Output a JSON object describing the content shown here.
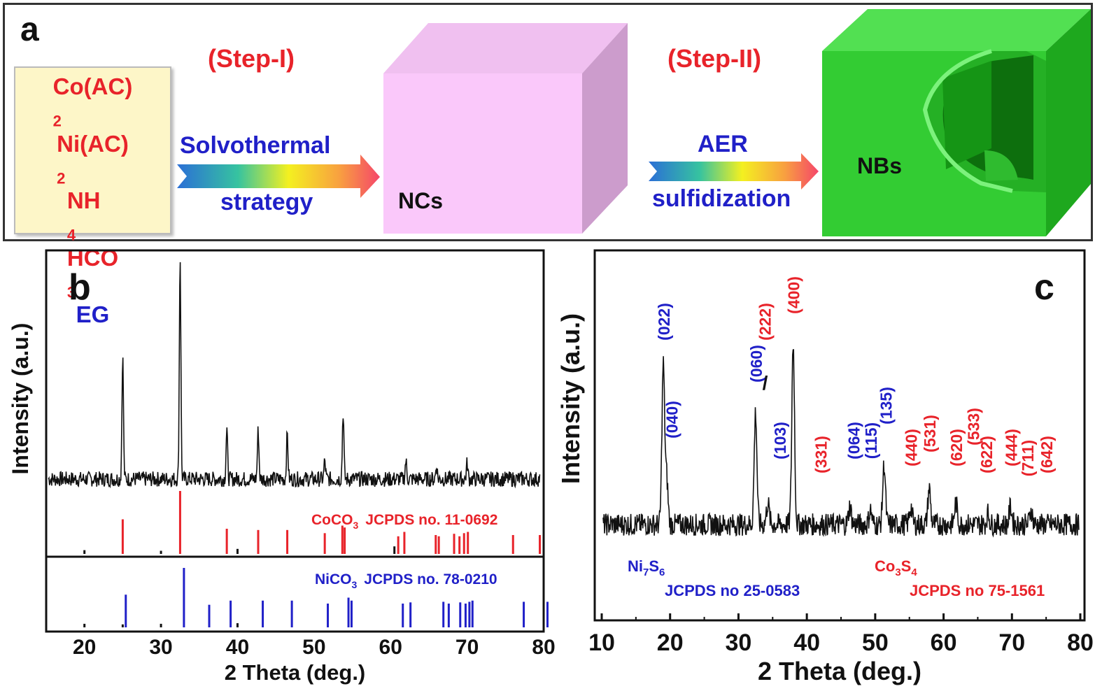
{
  "panel_a": {
    "label": "a",
    "reactants": [
      {
        "main": "Co(AC)",
        "sub": "2",
        "tail": "",
        "color": "#e8232a"
      },
      {
        "main": "Ni(AC)",
        "sub": "2",
        "tail": "",
        "color": "#e8232a"
      },
      {
        "main": "NH",
        "sub": "4",
        "tail": "HCO",
        "sub2": "3",
        "color": "#e8232a"
      },
      {
        "main": "EG",
        "sub": "",
        "tail": "",
        "color": "#2020c8"
      }
    ],
    "step1": "(Step-I)",
    "step1_arrow_top": "Solvothermal",
    "step1_arrow_bottom": "strategy",
    "ncs_label": "NCs",
    "step2": "(Step-II)",
    "step2_arrow_top": "AER",
    "step2_arrow_bottom": "sulfidization",
    "nbs_label": "NBs"
  },
  "chart_data": [
    {
      "type": "line",
      "panel_label": "b",
      "xlabel": "2 Theta (deg.)",
      "ylabel": "Intensity (a.u.)",
      "xlim": [
        15,
        80
      ],
      "xticks": [
        20,
        30,
        40,
        50,
        60,
        70,
        80
      ],
      "series_peaks": [
        [
          25.0,
          0.55
        ],
        [
          32.5,
          1.0
        ],
        [
          38.6,
          0.22
        ],
        [
          42.7,
          0.22
        ],
        [
          46.5,
          0.2
        ],
        [
          51.4,
          0.08
        ],
        [
          53.8,
          0.3
        ],
        [
          62.0,
          0.08
        ],
        [
          66.0,
          0.06
        ],
        [
          70.0,
          0.07
        ]
      ],
      "references": [
        {
          "name": "CoCO",
          "sub": "3",
          "label": "JCPDS no. 11-0692",
          "color": "#e8232a",
          "lines": [
            [
              20.0,
              0.06,
              "#111"
            ],
            [
              25.0,
              0.55
            ],
            [
              30.0,
              0.05,
              "#111"
            ],
            [
              32.5,
              1.0
            ],
            [
              38.6,
              0.4
            ],
            [
              40.0,
              0.08,
              "#111"
            ],
            [
              42.7,
              0.38
            ],
            [
              46.5,
              0.38
            ],
            [
              51.4,
              0.33
            ],
            [
              53.7,
              0.45
            ],
            [
              54.0,
              0.42
            ],
            [
              60.5,
              0.12,
              "#111"
            ],
            [
              61.0,
              0.28
            ],
            [
              61.8,
              0.35
            ],
            [
              65.9,
              0.3
            ],
            [
              66.3,
              0.28
            ],
            [
              68.3,
              0.32
            ],
            [
              69.0,
              0.28
            ],
            [
              69.6,
              0.33
            ],
            [
              70.1,
              0.35
            ],
            [
              76.0,
              0.3
            ],
            [
              79.5,
              0.3
            ]
          ]
        },
        {
          "name": "NiCO",
          "sub": "3",
          "label": "JCPDS no. 78-0210",
          "color": "#2020c8",
          "lines": [
            [
              20.0,
              0.06,
              "#111"
            ],
            [
              25.4,
              0.55
            ],
            [
              25.0,
              0.05,
              "#111"
            ],
            [
              30.0,
              0.06,
              "#111"
            ],
            [
              33.0,
              1.0
            ],
            [
              36.3,
              0.38
            ],
            [
              39.1,
              0.45
            ],
            [
              40.0,
              0.07,
              "#111"
            ],
            [
              43.3,
              0.45
            ],
            [
              47.1,
              0.45
            ],
            [
              51.8,
              0.4
            ],
            [
              54.5,
              0.5
            ],
            [
              54.9,
              0.45
            ],
            [
              61.6,
              0.4
            ],
            [
              62.6,
              0.42
            ],
            [
              66.9,
              0.43
            ],
            [
              67.6,
              0.4
            ],
            [
              69.1,
              0.42
            ],
            [
              69.8,
              0.4
            ],
            [
              70.3,
              0.43
            ],
            [
              70.7,
              0.45
            ],
            [
              77.4,
              0.43
            ],
            [
              80.5,
              0.43
            ]
          ]
        }
      ]
    },
    {
      "type": "line",
      "panel_label": "c",
      "xlabel": "2 Theta (deg.)",
      "ylabel": "Intensity (a.u.)",
      "xlim": [
        10,
        80
      ],
      "xticks": [
        10,
        20,
        30,
        40,
        50,
        60,
        70,
        80
      ],
      "series_peaks": [
        [
          19.0,
          0.88
        ],
        [
          19.5,
          0.25
        ],
        [
          32.5,
          0.62
        ],
        [
          34.3,
          0.12
        ],
        [
          38.0,
          1.0
        ],
        [
          46.3,
          0.1
        ],
        [
          49.3,
          0.08
        ],
        [
          51.3,
          0.33
        ],
        [
          55.2,
          0.1
        ],
        [
          57.9,
          0.2
        ],
        [
          61.8,
          0.12
        ],
        [
          66.5,
          0.06
        ],
        [
          69.8,
          0.1
        ],
        [
          72.8,
          0.08
        ]
      ],
      "hkl_labels": [
        {
          "text": "(022)",
          "x": 19.0,
          "color": "#2020c8"
        },
        {
          "text": "(040)",
          "x": 20.2,
          "color": "#2020c8"
        },
        {
          "text": "(060)",
          "x": 32.5,
          "color": "#2020c8"
        },
        {
          "text": "/",
          "x": 33.7,
          "color": "#111"
        },
        {
          "text": "(222)",
          "x": 33.8,
          "color": "#e8232a"
        },
        {
          "text": "(400)",
          "x": 38.0,
          "color": "#e8232a"
        },
        {
          "text": "(103)",
          "x": 36.0,
          "color": "#2020c8"
        },
        {
          "text": "(331)",
          "x": 42.0,
          "color": "#e8232a"
        },
        {
          "text": "(064)",
          "x": 46.8,
          "color": "#2020c8"
        },
        {
          "text": "(115)",
          "x": 49.3,
          "color": "#2020c8"
        },
        {
          "text": "(135)",
          "x": 51.5,
          "color": "#2020c8"
        },
        {
          "text": "(440)",
          "x": 55.2,
          "color": "#e8232a"
        },
        {
          "text": "(531)",
          "x": 57.9,
          "color": "#e8232a"
        },
        {
          "text": "(620)",
          "x": 61.8,
          "color": "#e8232a"
        },
        {
          "text": "(533)",
          "x": 64.3,
          "color": "#e8232a"
        },
        {
          "text": "(622)",
          "x": 66.2,
          "color": "#e8232a"
        },
        {
          "text": "(444)",
          "x": 69.8,
          "color": "#e8232a"
        },
        {
          "text": "(711)",
          "x": 72.2,
          "color": "#e8232a"
        },
        {
          "text": "(642)",
          "x": 75.0,
          "color": "#e8232a"
        }
      ],
      "legends": [
        {
          "name": "Ni",
          "sub1": "7",
          "name2": "S",
          "sub2": "6",
          "ref": "JCPDS no 25-0583",
          "color": "#2020c8"
        },
        {
          "name": "Co",
          "sub1": "3",
          "name2": "S",
          "sub2": "4",
          "ref": "JCPDS no 75-1561",
          "color": "#e8232a"
        }
      ]
    }
  ]
}
